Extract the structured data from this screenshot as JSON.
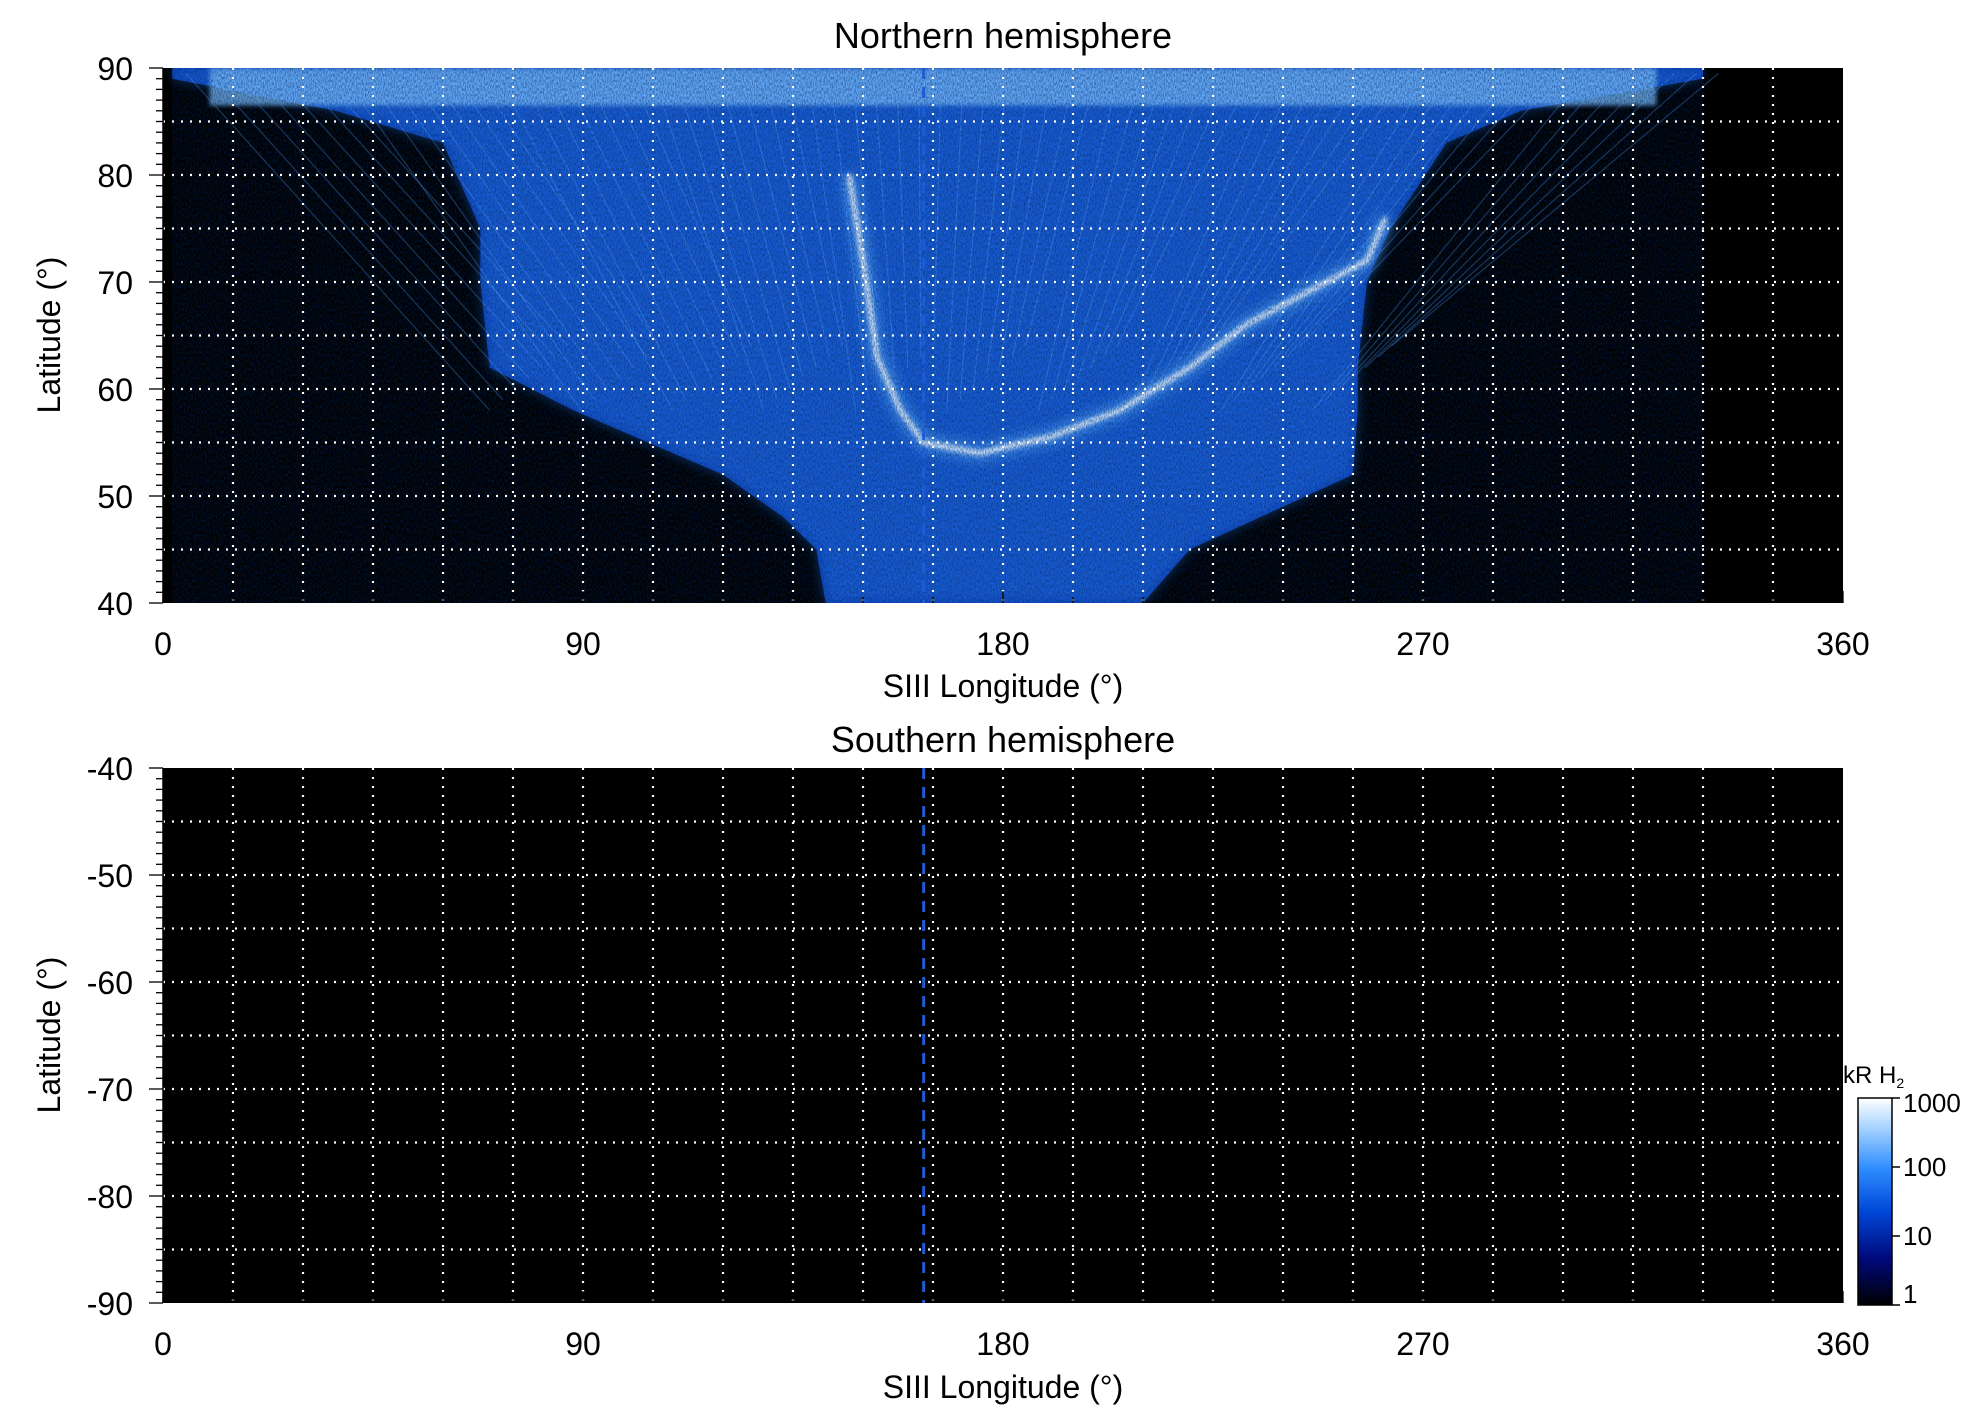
{
  "chart_data": [
    {
      "type": "heatmap",
      "title": "Northern hemisphere",
      "xlabel": "SIII Longitude (°)",
      "ylabel": "Latitude (°)",
      "xlim": [
        0,
        360
      ],
      "ylim": [
        40,
        90
      ],
      "xticks": [
        0,
        90,
        180,
        270,
        360
      ],
      "yticks": [
        40,
        50,
        60,
        70,
        80,
        90
      ],
      "grid": true,
      "reference_longitude": 163,
      "main_oval": [
        {
          "lon": 147,
          "lat": 80
        },
        {
          "lon": 150,
          "lat": 72
        },
        {
          "lon": 153,
          "lat": 63
        },
        {
          "lon": 158,
          "lat": 58
        },
        {
          "lon": 163,
          "lat": 55
        },
        {
          "lon": 175,
          "lat": 54
        },
        {
          "lon": 190,
          "lat": 55.5
        },
        {
          "lon": 205,
          "lat": 58
        },
        {
          "lon": 220,
          "lat": 62
        },
        {
          "lon": 232,
          "lat": 66
        },
        {
          "lon": 245,
          "lat": 69
        },
        {
          "lon": 258,
          "lat": 72
        },
        {
          "lon": 262,
          "lat": 76
        }
      ],
      "emission_region": {
        "lon_range_at_lat": [
          {
            "lat": 89,
            "lon": [
              2,
              330
            ]
          },
          {
            "lat": 86,
            "lon": [
              37,
              291
            ]
          },
          {
            "lat": 83,
            "lon": [
              60,
              275
            ]
          },
          {
            "lat": 75,
            "lon": [
              68,
              263
            ]
          },
          {
            "lat": 70,
            "lon": [
              68,
              258
            ]
          },
          {
            "lat": 62,
            "lon": [
              70,
              256
            ]
          },
          {
            "lat": 58,
            "lon": [
              88,
              256
            ]
          },
          {
            "lat": 52,
            "lon": [
              120,
              255
            ]
          },
          {
            "lat": 48,
            "lon": [
              133,
              235
            ]
          },
          {
            "lat": 45,
            "lon": [
              140,
              220
            ]
          },
          {
            "lat": 40,
            "lon": [
              142,
              210
            ]
          }
        ]
      }
    },
    {
      "type": "heatmap",
      "title": "Southern hemisphere",
      "xlabel": "SIII Longitude (°)",
      "ylabel": "Latitude (°)",
      "xlim": [
        0,
        360
      ],
      "ylim": [
        -90,
        -40
      ],
      "xticks": [
        0,
        90,
        180,
        270,
        360
      ],
      "yticks": [
        -40,
        -50,
        -60,
        -70,
        -80,
        -90
      ],
      "grid": true,
      "reference_longitude": 163
    }
  ],
  "colorbar": {
    "label": "kR H",
    "label_subscript": "2",
    "scale": "log",
    "range": [
      1,
      1000
    ],
    "ticks": [
      "1000",
      "100",
      "10",
      "1"
    ],
    "colors": [
      "#000000",
      "#00087a",
      "#0046d6",
      "#2e8dff",
      "#a9d4ff",
      "#ffffff"
    ]
  },
  "reference_line_color": "#1f5bd6"
}
